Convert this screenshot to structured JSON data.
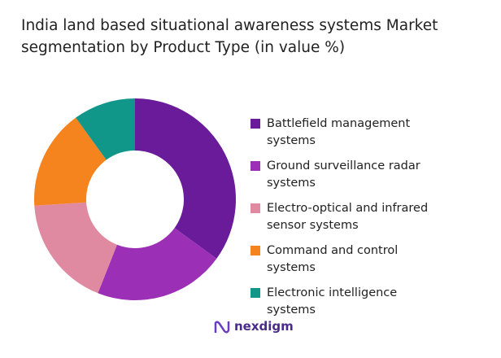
{
  "chart_data": {
    "type": "donut",
    "title": "India land based situational awareness systems Market segmentation by Product Type (in value %)",
    "categories": [
      "Battlefield management systems",
      "Ground surveillance radar systems",
      "Electro-optical and infrared sensor systems",
      "Command and control systems",
      "Electronic intelligence systems"
    ],
    "values": [
      35,
      21,
      18,
      16,
      10
    ],
    "colors": [
      "#6a1b9a",
      "#9b2fb5",
      "#df8aa0",
      "#f5841f",
      "#11968a"
    ],
    "brand": "nexdigm"
  }
}
